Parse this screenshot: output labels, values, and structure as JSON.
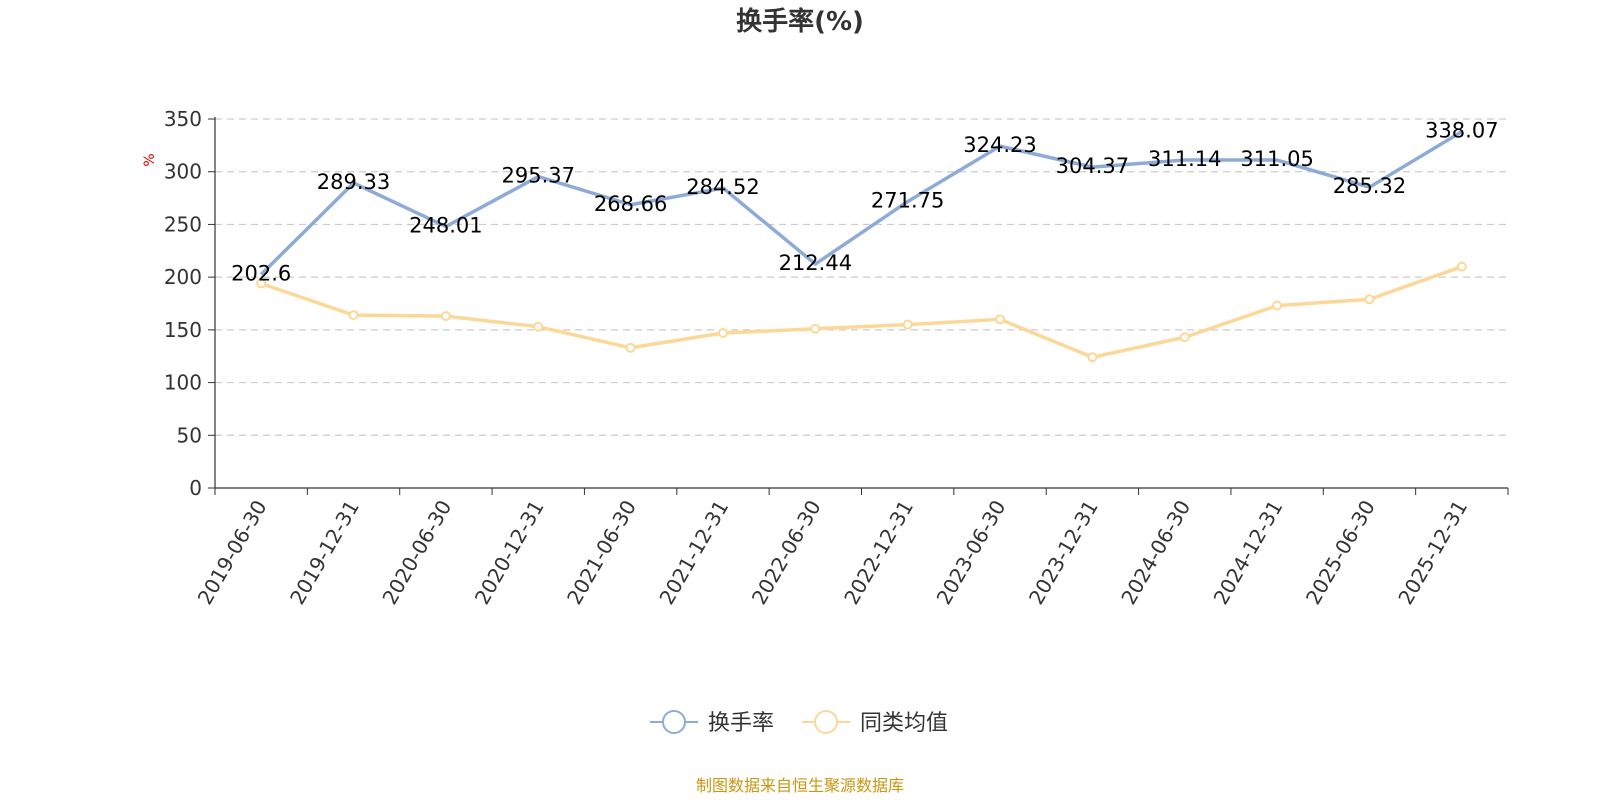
{
  "chart_data": {
    "type": "line",
    "title": "换手率(%)",
    "ylabel": "%",
    "ylim": [
      0,
      350
    ],
    "yticks": [
      0,
      50,
      100,
      150,
      200,
      250,
      300,
      350
    ],
    "grid": true,
    "legend_position": "bottom",
    "categories": [
      "2019-06-30",
      "2019-12-31",
      "2020-06-30",
      "2020-12-31",
      "2021-06-30",
      "2021-12-31",
      "2022-06-30",
      "2022-12-31",
      "2023-06-30",
      "2023-12-31",
      "2024-06-30",
      "2024-12-31",
      "2025-06-30",
      "2025-12-31"
    ],
    "series": [
      {
        "name": "换手率",
        "color": "#8eaad6",
        "values": [
          202.6,
          289.33,
          248.01,
          295.37,
          268.66,
          284.52,
          212.44,
          271.75,
          324.23,
          304.37,
          311.14,
          311.05,
          285.32,
          338.07
        ],
        "labels": [
          "202.6",
          "289.33",
          "248.01",
          "295.37",
          "268.66",
          "284.52",
          "212.44",
          "271.75",
          "324.23",
          "304.37",
          "311.14",
          "311.05",
          "285.32",
          "338.07"
        ]
      },
      {
        "name": "同类均值",
        "color": "#fcd898",
        "values": [
          194,
          164,
          163,
          153,
          133,
          147,
          151,
          155,
          160,
          124,
          143,
          173,
          179,
          210
        ]
      }
    ],
    "source": "制图数据来自恒生聚源数据库"
  }
}
